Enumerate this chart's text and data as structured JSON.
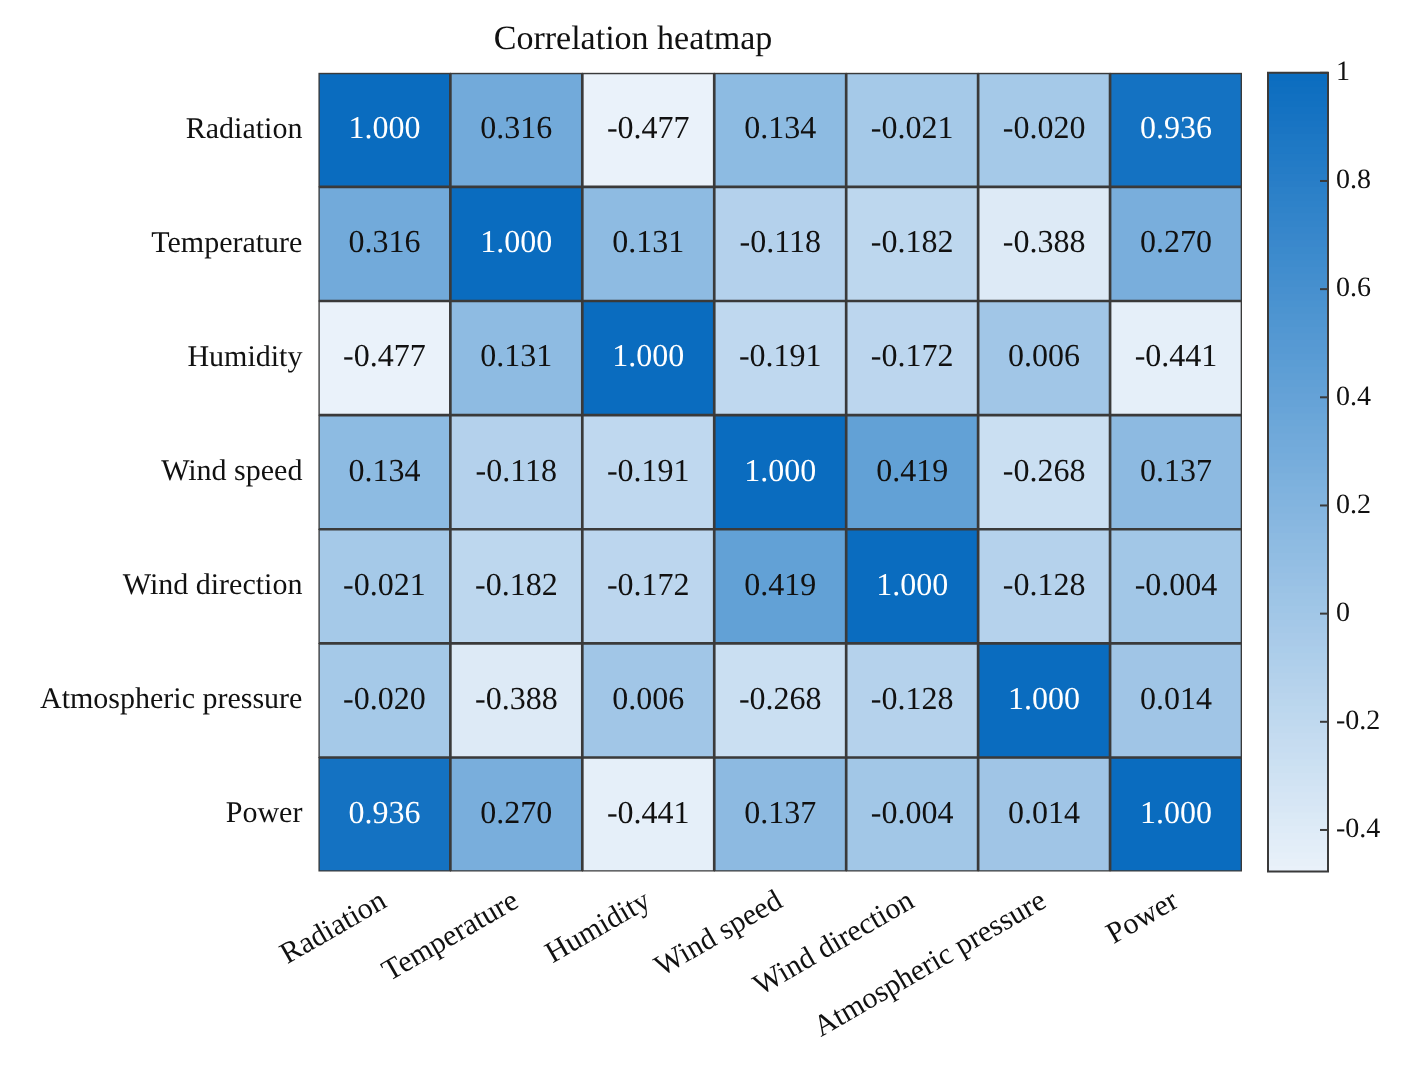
{
  "chart_data": {
    "type": "heatmap",
    "title": "Correlation heatmap",
    "categories": [
      "Radiation",
      "Temperature",
      "Humidity",
      "Wind speed",
      "Wind direction",
      "Atmospheric pressure",
      "Power"
    ],
    "y_categories": [
      "Radiation",
      "Temperature",
      "Humidity",
      "Wind speed",
      "Wind direction",
      "Atmospheric pressure",
      "Power"
    ],
    "cells": [
      [
        1,
        0.316,
        -0.477,
        0.134,
        -0.021,
        -0.02,
        0.936
      ],
      [
        0.316,
        1,
        0.131,
        -0.118,
        -0.182,
        -0.388,
        0.27
      ],
      [
        -0.477,
        0.131,
        1,
        -0.191,
        -0.172,
        0.006,
        -0.441
      ],
      [
        0.134,
        -0.118,
        -0.191,
        1,
        0.419,
        -0.268,
        0.137
      ],
      [
        -0.021,
        -0.182,
        -0.172,
        0.419,
        1,
        -0.128,
        -0.004
      ],
      [
        -0.02,
        -0.388,
        0.006,
        -0.268,
        -0.128,
        1,
        0.014
      ],
      [
        0.936,
        0.27,
        -0.441,
        0.137,
        -0.004,
        0.014,
        1
      ]
    ],
    "cell_labels": [
      [
        "1.000",
        "0.316",
        "-0.477",
        "0.134",
        "-0.021",
        "-0.020",
        "0.936"
      ],
      [
        "0.316",
        "1.000",
        "0.131",
        "-0.118",
        "-0.182",
        "-0.388",
        "0.270"
      ],
      [
        "-0.477",
        "0.131",
        "1.000",
        "-0.191",
        "-0.172",
        "0.006",
        "-0.441"
      ],
      [
        "0.134",
        "-0.118",
        "-0.191",
        "1.000",
        "0.419",
        "-0.268",
        "0.137"
      ],
      [
        "-0.021",
        "-0.182",
        "-0.172",
        "0.419",
        "1.000",
        "-0.128",
        "-0.004"
      ],
      [
        "-0.020",
        "-0.388",
        "0.006",
        "-0.268",
        "-0.128",
        "1.000",
        "0.014"
      ],
      [
        "0.936",
        "0.270",
        "-0.441",
        "0.137",
        "-0.004",
        "0.014",
        "1.000"
      ]
    ],
    "clim": [
      -0.477,
      1
    ],
    "cticks": [
      -0.4,
      -0.2,
      0,
      0.2,
      0.4,
      0.6,
      0.8,
      1
    ]
  }
}
